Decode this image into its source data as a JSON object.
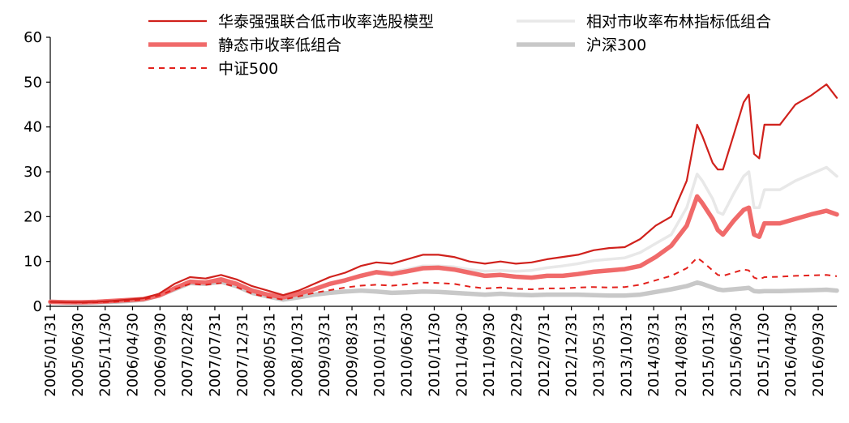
{
  "chart_data": {
    "type": "line",
    "ylim": [
      0,
      60
    ],
    "yticks": [
      0,
      10,
      20,
      30,
      40,
      50,
      60
    ],
    "x_tick_labels": [
      "2005/01/31",
      "2005/06/30",
      "2005/11/30",
      "2006/04/30",
      "2006/09/30",
      "2007/02/28",
      "2007/07/31",
      "2007/12/31",
      "2008/05/31",
      "2008/10/31",
      "2009/03/31",
      "2009/08/31",
      "2010/01/31",
      "2010/06/30",
      "2010/11/30",
      "2011/04/30",
      "2011/09/30",
      "2012/02/29",
      "2012/07/31",
      "2012/12/31",
      "2013/05/31",
      "2013/10/31",
      "2014/03/31",
      "2014/08/31",
      "2015/01/31",
      "2015/06/30",
      "2015/11/30",
      "2016/04/30",
      "2016/09/30"
    ],
    "legend_placement": "top",
    "series": [
      {
        "name": "华泰强强联合低市收率选股模型",
        "color": "#d0211c",
        "style": "solid",
        "width": 2.2,
        "points": [
          [
            0,
            1.0
          ],
          [
            3,
            0.9
          ],
          [
            6,
            0.9
          ],
          [
            9,
            1.0
          ],
          [
            12,
            1.2
          ],
          [
            15,
            1.5
          ],
          [
            18,
            1.8
          ],
          [
            21,
            2.8
          ],
          [
            24,
            5.0
          ],
          [
            27,
            6.5
          ],
          [
            30,
            6.2
          ],
          [
            33,
            7.0
          ],
          [
            36,
            6.0
          ],
          [
            39,
            4.5
          ],
          [
            42,
            3.5
          ],
          [
            45,
            2.5
          ],
          [
            48,
            3.5
          ],
          [
            51,
            5.0
          ],
          [
            54,
            6.5
          ],
          [
            57,
            7.5
          ],
          [
            60,
            9.0
          ],
          [
            63,
            9.8
          ],
          [
            66,
            9.5
          ],
          [
            69,
            10.5
          ],
          [
            72,
            11.5
          ],
          [
            75,
            11.5
          ],
          [
            78,
            11.0
          ],
          [
            81,
            10.0
          ],
          [
            84,
            9.5
          ],
          [
            87,
            10.0
          ],
          [
            90,
            9.5
          ],
          [
            93,
            9.8
          ],
          [
            96,
            10.5
          ],
          [
            99,
            11.0
          ],
          [
            102,
            11.5
          ],
          [
            105,
            12.5
          ],
          [
            108,
            13.0
          ],
          [
            111,
            13.2
          ],
          [
            114,
            15.0
          ],
          [
            117,
            18.0
          ],
          [
            120,
            20.0
          ],
          [
            123,
            28.0
          ],
          [
            125,
            40.5
          ],
          [
            126,
            38.0
          ],
          [
            128,
            32.0
          ],
          [
            129,
            30.5
          ],
          [
            130,
            30.5
          ],
          [
            132,
            38.0
          ],
          [
            134,
            45.5
          ],
          [
            135,
            47.2
          ],
          [
            136,
            34.0
          ],
          [
            137,
            33.0
          ],
          [
            138,
            40.5
          ],
          [
            141,
            40.5
          ],
          [
            144,
            45.0
          ],
          [
            147,
            47.0
          ],
          [
            150,
            49.5
          ],
          [
            152,
            46.5
          ]
        ]
      },
      {
        "name": "相对市收率布林指标低组合",
        "color": "#e8e8e8",
        "style": "solid",
        "width": 3.5,
        "points": [
          [
            0,
            1.0
          ],
          [
            3,
            0.9
          ],
          [
            6,
            0.9
          ],
          [
            9,
            1.0
          ],
          [
            12,
            1.2
          ],
          [
            15,
            1.4
          ],
          [
            18,
            1.7
          ],
          [
            21,
            2.5
          ],
          [
            24,
            4.2
          ],
          [
            27,
            5.5
          ],
          [
            30,
            5.3
          ],
          [
            33,
            6.0
          ],
          [
            36,
            5.2
          ],
          [
            39,
            3.8
          ],
          [
            42,
            2.8
          ],
          [
            45,
            2.2
          ],
          [
            48,
            3.0
          ],
          [
            51,
            4.0
          ],
          [
            54,
            5.2
          ],
          [
            57,
            6.0
          ],
          [
            60,
            7.0
          ],
          [
            63,
            7.8
          ],
          [
            66,
            7.6
          ],
          [
            69,
            8.3
          ],
          [
            72,
            9.0
          ],
          [
            75,
            9.0
          ],
          [
            78,
            8.8
          ],
          [
            81,
            8.2
          ],
          [
            84,
            7.8
          ],
          [
            87,
            8.0
          ],
          [
            90,
            7.8
          ],
          [
            93,
            8.0
          ],
          [
            96,
            8.6
          ],
          [
            99,
            9.0
          ],
          [
            102,
            9.5
          ],
          [
            105,
            10.2
          ],
          [
            108,
            10.5
          ],
          [
            111,
            10.8
          ],
          [
            114,
            12.0
          ],
          [
            117,
            14.0
          ],
          [
            120,
            16.0
          ],
          [
            123,
            22.0
          ],
          [
            125,
            29.5
          ],
          [
            126,
            28.0
          ],
          [
            128,
            24.0
          ],
          [
            129,
            21.0
          ],
          [
            130,
            20.5
          ],
          [
            132,
            25.0
          ],
          [
            134,
            29.0
          ],
          [
            135,
            30.0
          ],
          [
            136,
            22.0
          ],
          [
            137,
            22.0
          ],
          [
            138,
            26.0
          ],
          [
            141,
            26.0
          ],
          [
            144,
            28.0
          ],
          [
            147,
            29.5
          ],
          [
            150,
            31.0
          ],
          [
            152,
            29.0
          ]
        ]
      },
      {
        "name": "静态市收率低组合",
        "color": "#f06a6a",
        "style": "solid",
        "width": 5.5,
        "points": [
          [
            0,
            1.0
          ],
          [
            3,
            0.9
          ],
          [
            6,
            0.9
          ],
          [
            9,
            1.0
          ],
          [
            12,
            1.2
          ],
          [
            15,
            1.4
          ],
          [
            18,
            1.6
          ],
          [
            21,
            2.4
          ],
          [
            24,
            4.0
          ],
          [
            27,
            5.5
          ],
          [
            30,
            5.3
          ],
          [
            33,
            6.0
          ],
          [
            36,
            5.0
          ],
          [
            39,
            3.5
          ],
          [
            42,
            2.6
          ],
          [
            45,
            2.0
          ],
          [
            48,
            2.8
          ],
          [
            51,
            3.8
          ],
          [
            54,
            5.0
          ],
          [
            57,
            5.8
          ],
          [
            60,
            6.8
          ],
          [
            63,
            7.6
          ],
          [
            66,
            7.2
          ],
          [
            69,
            7.8
          ],
          [
            72,
            8.5
          ],
          [
            75,
            8.6
          ],
          [
            78,
            8.2
          ],
          [
            81,
            7.5
          ],
          [
            84,
            6.8
          ],
          [
            87,
            7.0
          ],
          [
            90,
            6.6
          ],
          [
            93,
            6.4
          ],
          [
            96,
            6.8
          ],
          [
            99,
            6.8
          ],
          [
            102,
            7.2
          ],
          [
            105,
            7.7
          ],
          [
            108,
            8.0
          ],
          [
            111,
            8.3
          ],
          [
            114,
            9.0
          ],
          [
            117,
            11.0
          ],
          [
            120,
            13.5
          ],
          [
            123,
            18.0
          ],
          [
            125,
            24.5
          ],
          [
            126,
            23.0
          ],
          [
            128,
            19.5
          ],
          [
            129,
            17.0
          ],
          [
            130,
            16.0
          ],
          [
            132,
            19.0
          ],
          [
            134,
            21.5
          ],
          [
            135,
            22.0
          ],
          [
            136,
            16.0
          ],
          [
            137,
            15.5
          ],
          [
            138,
            18.5
          ],
          [
            141,
            18.5
          ],
          [
            144,
            19.5
          ],
          [
            147,
            20.5
          ],
          [
            150,
            21.3
          ],
          [
            152,
            20.5
          ]
        ]
      },
      {
        "name": "沪深300",
        "color": "#c8c8c8",
        "style": "solid",
        "width": 5.5,
        "points": [
          [
            0,
            1.0
          ],
          [
            3,
            0.9
          ],
          [
            6,
            0.8
          ],
          [
            9,
            0.9
          ],
          [
            12,
            1.0
          ],
          [
            15,
            1.2
          ],
          [
            18,
            1.5
          ],
          [
            21,
            2.4
          ],
          [
            24,
            3.8
          ],
          [
            27,
            5.2
          ],
          [
            30,
            5.0
          ],
          [
            33,
            5.5
          ],
          [
            36,
            4.5
          ],
          [
            39,
            3.0
          ],
          [
            42,
            2.2
          ],
          [
            45,
            1.5
          ],
          [
            48,
            2.0
          ],
          [
            51,
            2.6
          ],
          [
            54,
            3.0
          ],
          [
            57,
            3.3
          ],
          [
            60,
            3.5
          ],
          [
            63,
            3.3
          ],
          [
            66,
            3.0
          ],
          [
            69,
            3.1
          ],
          [
            72,
            3.3
          ],
          [
            75,
            3.2
          ],
          [
            78,
            3.0
          ],
          [
            81,
            2.8
          ],
          [
            84,
            2.6
          ],
          [
            87,
            2.8
          ],
          [
            90,
            2.6
          ],
          [
            93,
            2.5
          ],
          [
            96,
            2.6
          ],
          [
            99,
            2.6
          ],
          [
            102,
            2.6
          ],
          [
            105,
            2.5
          ],
          [
            108,
            2.4
          ],
          [
            111,
            2.4
          ],
          [
            114,
            2.6
          ],
          [
            117,
            3.2
          ],
          [
            120,
            3.8
          ],
          [
            123,
            4.5
          ],
          [
            125,
            5.3
          ],
          [
            126,
            5.0
          ],
          [
            128,
            4.2
          ],
          [
            129,
            3.8
          ],
          [
            130,
            3.6
          ],
          [
            132,
            3.8
          ],
          [
            134,
            4.0
          ],
          [
            135,
            4.1
          ],
          [
            136,
            3.4
          ],
          [
            137,
            3.3
          ],
          [
            138,
            3.4
          ],
          [
            141,
            3.4
          ],
          [
            144,
            3.5
          ],
          [
            147,
            3.6
          ],
          [
            150,
            3.7
          ],
          [
            152,
            3.5
          ]
        ]
      },
      {
        "name": "中证500",
        "color": "#e3211c",
        "style": "dashed",
        "width": 2.0,
        "points": [
          [
            0,
            1.0
          ],
          [
            3,
            0.9
          ],
          [
            6,
            0.8
          ],
          [
            9,
            0.9
          ],
          [
            12,
            1.0
          ],
          [
            15,
            1.2
          ],
          [
            18,
            1.5
          ],
          [
            21,
            2.4
          ],
          [
            24,
            3.8
          ],
          [
            27,
            5.0
          ],
          [
            30,
            4.8
          ],
          [
            33,
            5.2
          ],
          [
            36,
            4.3
          ],
          [
            39,
            2.8
          ],
          [
            42,
            2.0
          ],
          [
            45,
            1.5
          ],
          [
            48,
            2.2
          ],
          [
            51,
            3.0
          ],
          [
            54,
            3.6
          ],
          [
            57,
            4.2
          ],
          [
            60,
            4.6
          ],
          [
            63,
            4.8
          ],
          [
            66,
            4.6
          ],
          [
            69,
            4.9
          ],
          [
            72,
            5.3
          ],
          [
            75,
            5.2
          ],
          [
            78,
            5.0
          ],
          [
            81,
            4.4
          ],
          [
            84,
            4.0
          ],
          [
            87,
            4.2
          ],
          [
            90,
            3.9
          ],
          [
            93,
            3.8
          ],
          [
            96,
            4.0
          ],
          [
            99,
            4.0
          ],
          [
            102,
            4.2
          ],
          [
            105,
            4.3
          ],
          [
            108,
            4.2
          ],
          [
            111,
            4.3
          ],
          [
            114,
            4.8
          ],
          [
            117,
            5.8
          ],
          [
            120,
            6.8
          ],
          [
            123,
            8.5
          ],
          [
            125,
            10.8
          ],
          [
            126,
            10.0
          ],
          [
            128,
            8.0
          ],
          [
            129,
            7.0
          ],
          [
            130,
            6.8
          ],
          [
            132,
            7.5
          ],
          [
            134,
            8.2
          ],
          [
            135,
            8.0
          ],
          [
            136,
            6.4
          ],
          [
            137,
            6.0
          ],
          [
            138,
            6.5
          ],
          [
            141,
            6.6
          ],
          [
            144,
            6.8
          ],
          [
            147,
            6.9
          ],
          [
            150,
            7.0
          ],
          [
            152,
            6.7
          ]
        ]
      }
    ]
  }
}
